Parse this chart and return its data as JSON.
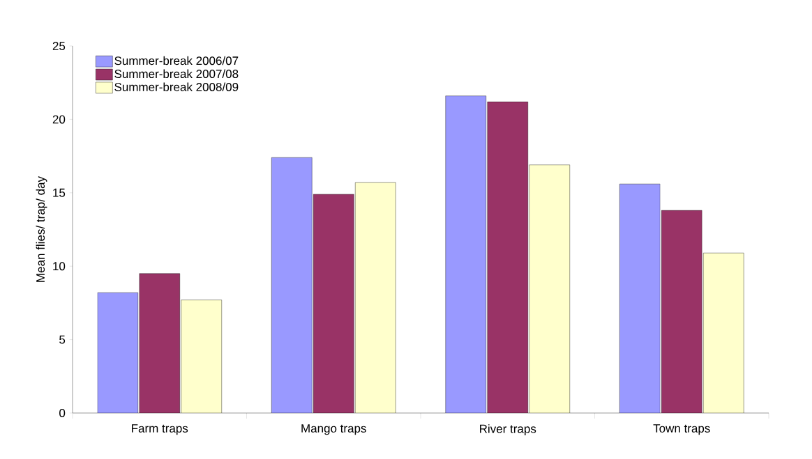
{
  "chart_data": {
    "type": "bar",
    "ylabel": "Mean flies/ trap/ day",
    "categories": [
      "Farm traps",
      "Mango traps",
      "River traps",
      "Town traps"
    ],
    "series": [
      {
        "name": "Summer-break 2006/07",
        "color": "#9999ff",
        "values": [
          8.2,
          17.4,
          21.6,
          15.6
        ]
      },
      {
        "name": "Summer-break 2007/08",
        "color": "#993366",
        "values": [
          9.5,
          14.9,
          21.2,
          13.8
        ]
      },
      {
        "name": "Summer-break 2008/09",
        "color": "#ffffcc",
        "values": [
          7.7,
          15.7,
          16.9,
          10.9
        ]
      }
    ],
    "ylim": [
      0,
      25
    ],
    "yticks": [
      0,
      5,
      10,
      15,
      20,
      25
    ],
    "legend": "top left",
    "grid": false
  }
}
